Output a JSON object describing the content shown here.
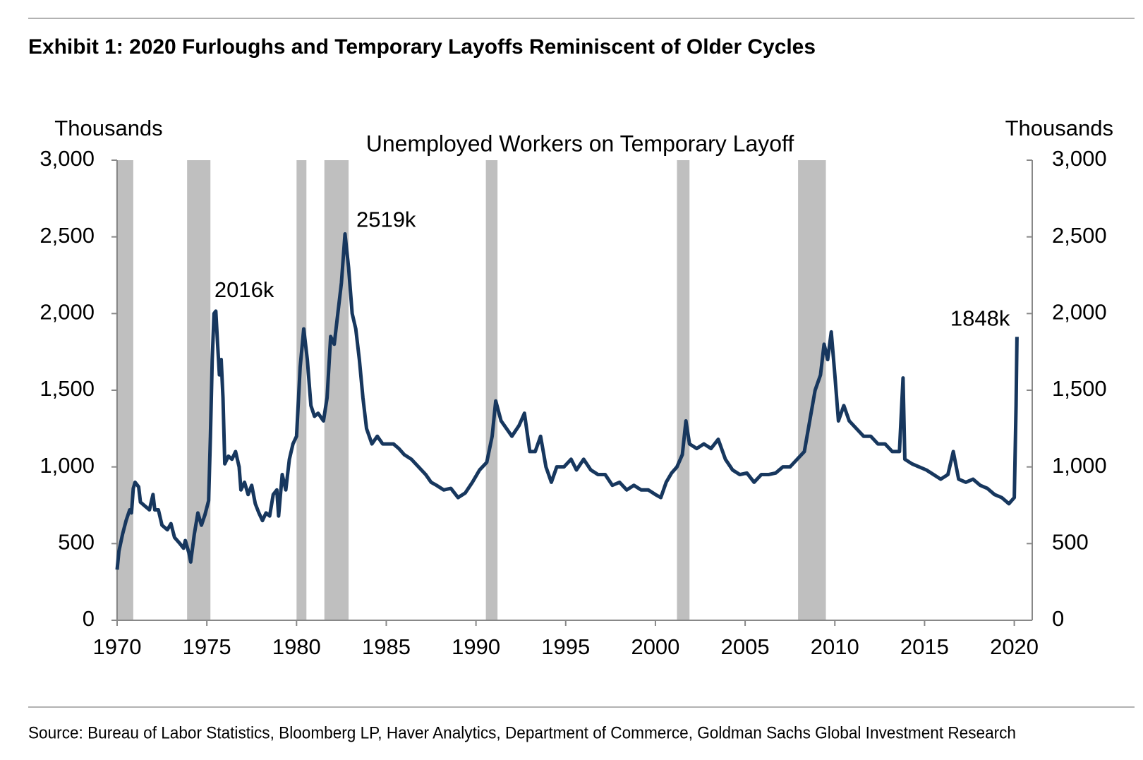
{
  "chart_data": {
    "type": "line",
    "title": "Exhibit 1: 2020 Furloughs and Temporary Layoffs Reminiscent of Older Cycles",
    "subtitle": "Unemployed Workers on Temporary Layoff",
    "ylabel": "Thousands",
    "y2label": "Thousands",
    "source": "Source: Bureau of Labor Statistics, Bloomberg LP, Haver Analytics, Department of Commerce, Goldman Sachs Global Investment Research",
    "xlim": [
      1970,
      2021
    ],
    "xticks": [
      1970,
      1975,
      1980,
      1985,
      1990,
      1995,
      2000,
      2005,
      2010,
      2015,
      2020
    ],
    "ylim": [
      0,
      3000
    ],
    "yticks": [
      0,
      500,
      {
        "value": 1000,
        "label": "1,000"
      },
      {
        "value": 1500,
        "label": "1,500"
      },
      {
        "value": 2000,
        "label": "2,000"
      },
      {
        "value": 2500,
        "label": "2,500"
      },
      {
        "value": 3000,
        "label": "3,000"
      }
    ],
    "y2lim": [
      0,
      3000
    ],
    "y2ticks": [
      0,
      500,
      {
        "value": 1000,
        "label": "1,000"
      },
      {
        "value": 1500,
        "label": "1,500"
      },
      {
        "value": 2000,
        "label": "2,000"
      },
      {
        "value": 2500,
        "label": "2,500"
      },
      {
        "value": 3000,
        "label": "3,000"
      }
    ],
    "recession_color": "#bfbfbf",
    "recessions": [
      [
        1969.95,
        1970.9
      ],
      [
        1973.9,
        1975.2
      ],
      [
        1980.0,
        1980.55
      ],
      [
        1981.55,
        1982.9
      ],
      [
        1990.55,
        1991.2
      ],
      [
        2001.2,
        2001.9
      ],
      [
        2007.95,
        2009.5
      ]
    ],
    "annotations": [
      {
        "text": "2016k",
        "x": 1975.5,
        "y": 2016
      },
      {
        "text": "2519k",
        "x": 1982.7,
        "y": 2519
      },
      {
        "text": "1848k",
        "x": 2020.15,
        "y": 1848
      }
    ],
    "series": [
      {
        "name": "Unemployed Workers on Temporary Layoff",
        "color": "#17375e",
        "x": [
          1970.0,
          1970.1,
          1970.3,
          1970.5,
          1970.7,
          1970.8,
          1970.9,
          1971.0,
          1971.2,
          1971.3,
          1971.6,
          1971.8,
          1972.0,
          1972.1,
          1972.3,
          1972.5,
          1972.8,
          1973.0,
          1973.2,
          1973.5,
          1973.7,
          1973.8,
          1974.0,
          1974.1,
          1974.3,
          1974.5,
          1974.7,
          1974.9,
          1975.1,
          1975.2,
          1975.3,
          1975.4,
          1975.5,
          1975.6,
          1975.7,
          1975.8,
          1975.9,
          1976.0,
          1976.2,
          1976.4,
          1976.6,
          1976.8,
          1976.9,
          1977.1,
          1977.3,
          1977.5,
          1977.7,
          1977.9,
          1978.1,
          1978.3,
          1978.5,
          1978.7,
          1978.9,
          1979.0,
          1979.2,
          1979.4,
          1979.6,
          1979.8,
          1980.0,
          1980.2,
          1980.4,
          1980.6,
          1980.8,
          1981.0,
          1981.2,
          1981.5,
          1981.7,
          1981.9,
          1982.1,
          1982.3,
          1982.5,
          1982.7,
          1982.9,
          1983.1,
          1983.3,
          1983.5,
          1983.7,
          1983.9,
          1984.2,
          1984.5,
          1984.8,
          1985.1,
          1985.4,
          1985.7,
          1986.0,
          1986.4,
          1986.8,
          1987.2,
          1987.5,
          1987.8,
          1988.2,
          1988.6,
          1989.0,
          1989.4,
          1989.8,
          1990.2,
          1990.6,
          1990.9,
          1991.1,
          1991.4,
          1991.7,
          1992.0,
          1992.4,
          1992.7,
          1993.0,
          1993.3,
          1993.6,
          1993.9,
          1994.2,
          1994.5,
          1994.9,
          1995.3,
          1995.6,
          1996.0,
          1996.4,
          1996.8,
          1997.2,
          1997.6,
          1998.0,
          1998.4,
          1998.8,
          1999.2,
          1999.6,
          2000.0,
          2000.3,
          2000.6,
          2000.9,
          2001.2,
          2001.5,
          2001.7,
          2001.9,
          2002.3,
          2002.7,
          2003.1,
          2003.5,
          2003.9,
          2004.3,
          2004.7,
          2005.1,
          2005.5,
          2005.9,
          2006.3,
          2006.7,
          2007.1,
          2007.5,
          2007.9,
          2008.3,
          2008.6,
          2008.9,
          2009.2,
          2009.4,
          2009.6,
          2009.8,
          2010.0,
          2010.2,
          2010.5,
          2010.8,
          2011.2,
          2011.6,
          2012.0,
          2012.4,
          2012.8,
          2013.2,
          2013.6,
          2013.8,
          2013.9,
          2014.3,
          2014.7,
          2015.1,
          2015.5,
          2015.9,
          2016.3,
          2016.6,
          2016.9,
          2017.3,
          2017.7,
          2018.1,
          2018.5,
          2018.9,
          2019.3,
          2019.7,
          2020.0,
          2020.1,
          2020.15
        ],
        "values": [
          330,
          450,
          560,
          650,
          720,
          700,
          860,
          900,
          870,
          770,
          740,
          720,
          820,
          720,
          720,
          620,
          590,
          630,
          540,
          500,
          470,
          520,
          440,
          380,
          560,
          700,
          620,
          690,
          780,
          1200,
          1700,
          2000,
          2016,
          1800,
          1600,
          1700,
          1450,
          1020,
          1070,
          1050,
          1100,
          1000,
          850,
          900,
          820,
          880,
          760,
          700,
          650,
          700,
          680,
          820,
          850,
          680,
          950,
          850,
          1050,
          1150,
          1200,
          1650,
          1900,
          1700,
          1400,
          1330,
          1350,
          1300,
          1450,
          1850,
          1800,
          2000,
          2200,
          2519,
          2300,
          2000,
          1900,
          1700,
          1450,
          1250,
          1150,
          1200,
          1150,
          1150,
          1150,
          1120,
          1080,
          1050,
          1000,
          950,
          900,
          880,
          850,
          860,
          800,
          830,
          900,
          980,
          1030,
          1200,
          1430,
          1300,
          1250,
          1200,
          1270,
          1350,
          1100,
          1100,
          1200,
          1000,
          900,
          1000,
          1000,
          1050,
          980,
          1050,
          980,
          950,
          950,
          880,
          900,
          850,
          880,
          850,
          850,
          820,
          800,
          900,
          960,
          1000,
          1080,
          1300,
          1150,
          1120,
          1150,
          1120,
          1180,
          1050,
          980,
          950,
          960,
          900,
          950,
          950,
          960,
          1000,
          1000,
          1050,
          1100,
          1300,
          1500,
          1600,
          1800,
          1700,
          1880,
          1600,
          1300,
          1400,
          1300,
          1250,
          1200,
          1200,
          1150,
          1150,
          1100,
          1100,
          1580,
          1050,
          1020,
          1000,
          980,
          950,
          920,
          950,
          1100,
          920,
          900,
          920,
          880,
          860,
          820,
          800,
          760,
          800,
          1400,
          1848
        ]
      }
    ]
  }
}
